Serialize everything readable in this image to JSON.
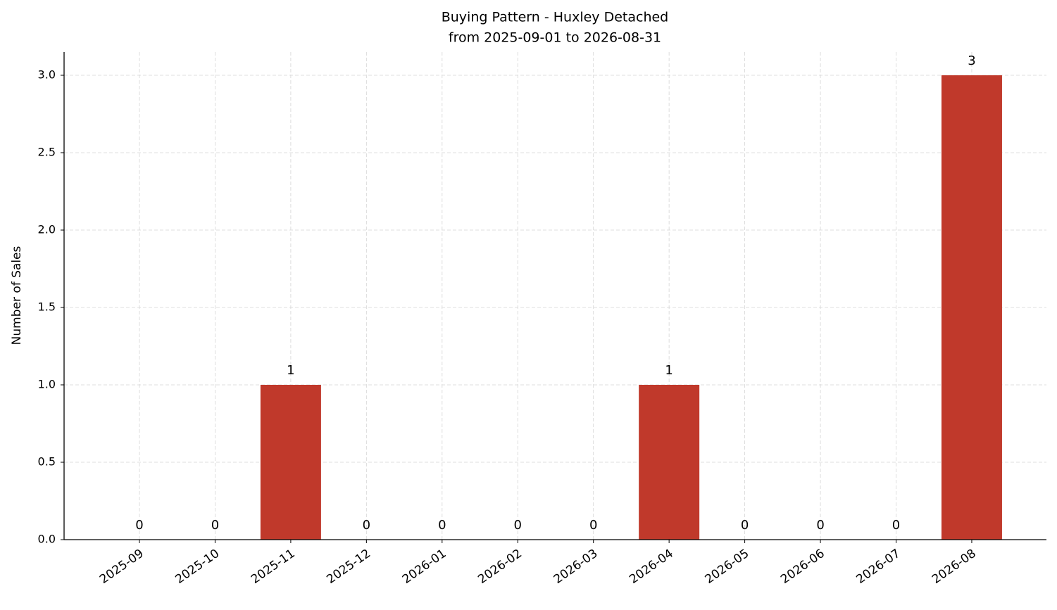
{
  "chart_data": {
    "type": "bar",
    "title": "Buying Pattern - Huxley Detached",
    "subtitle": "from 2025-09-01 to 2026-08-31",
    "y_label": "Number of Sales",
    "categories": [
      "2025-09",
      "2025-10",
      "2025-11",
      "2025-12",
      "2026-01",
      "2026-02",
      "2026-03",
      "2026-04",
      "2026-05",
      "2026-06",
      "2026-07",
      "2026-08"
    ],
    "values": [
      0,
      0,
      1,
      0,
      0,
      0,
      0,
      1,
      0,
      0,
      0,
      3
    ],
    "color": "#c0392b",
    "ylim": [
      0,
      3.15
    ],
    "yticks": [
      {
        "value": 0,
        "label": "0.0"
      },
      0.5,
      {
        "value": 1,
        "label": "1.0"
      },
      1.5,
      {
        "value": 2,
        "label": "2.0"
      },
      2.5,
      {
        "value": 3,
        "label": "3.0"
      }
    ],
    "grid": true
  }
}
